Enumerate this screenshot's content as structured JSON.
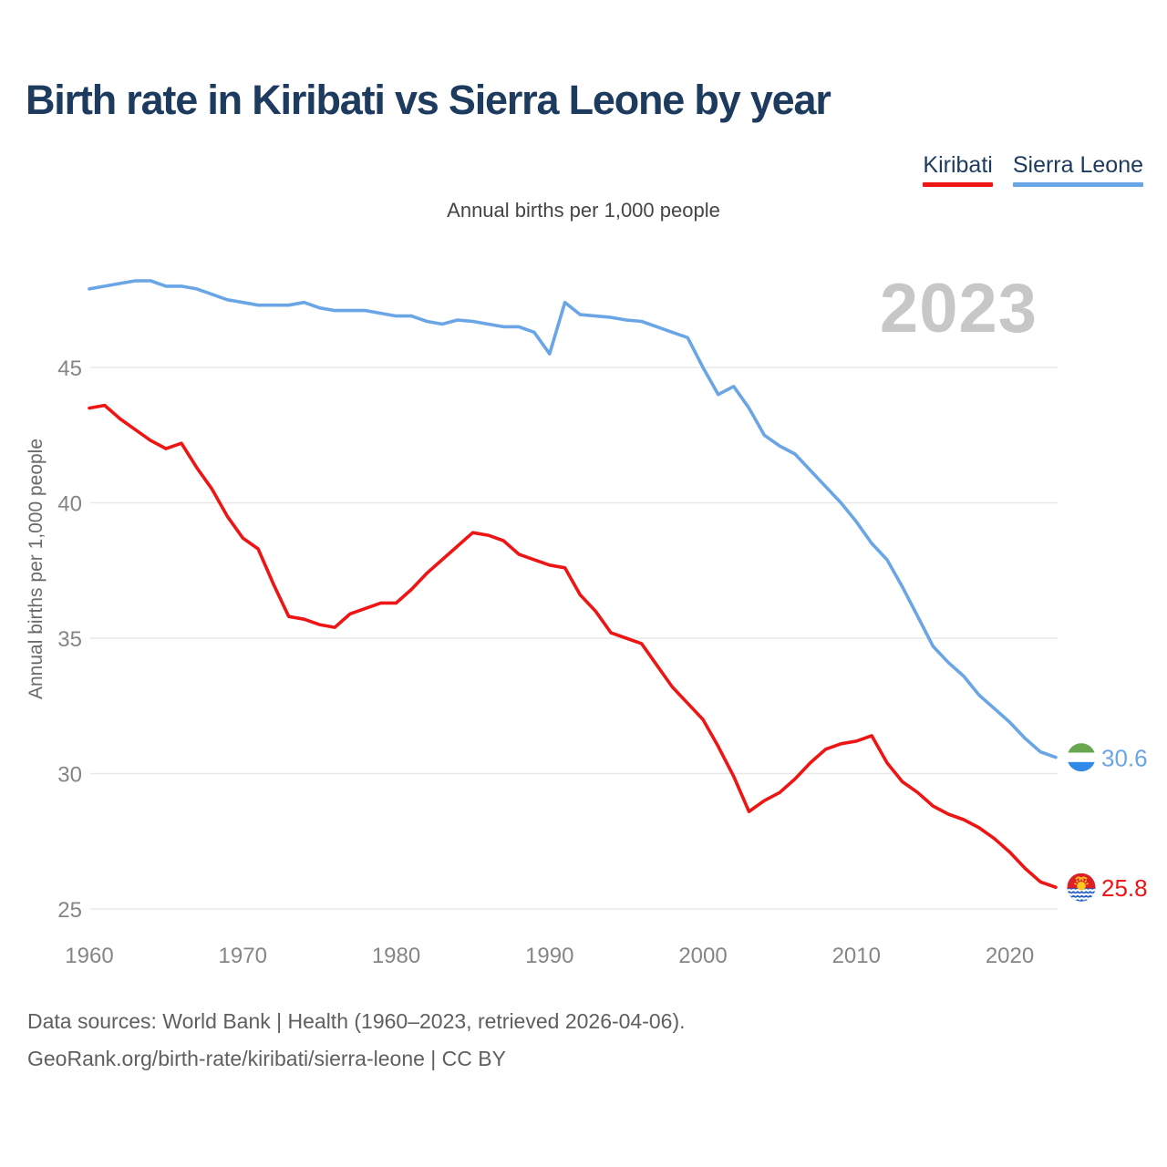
{
  "title": "Birth rate in Kiribati vs Sierra Leone by year",
  "subtitle": "Annual births per 1,000 people",
  "watermark_year": "2023",
  "legend": {
    "items": [
      {
        "label": "Kiribati",
        "color": "#ee1515"
      },
      {
        "label": "Sierra Leone",
        "color": "#6aa5e6"
      }
    ]
  },
  "footer": {
    "line1": "Data sources: World Bank | Health (1960–2023, retrieved 2026-04-06).",
    "line2": "GeoRank.org/birth-rate/kiribati/sierra-leone | CC BY"
  },
  "colors": {
    "background": "#ffffff",
    "title": "#1d3a5f",
    "subtitle": "#454545",
    "axis_text": "#858585",
    "axis_title": "#6a6a6a",
    "gridline": "#e8e8e8",
    "watermark": "#c7c7c7",
    "footer": "#5f5f5f"
  },
  "flags": {
    "sierra_leone": {
      "green": "#68a74e",
      "white": "#ffffff",
      "blue": "#2f89e6"
    },
    "kiribati": {
      "red": "#dd2025",
      "gold": "#ffc726",
      "sea_blue": "#2160c4",
      "wave_white": "#ffffff"
    }
  },
  "chart_data": {
    "type": "line",
    "title": "Birth rate in Kiribati vs Sierra Leone by year",
    "xlabel": "",
    "ylabel": "Annual births per 1,000 people",
    "x_start": 1960,
    "x_end": 2023,
    "x_ticks": [
      1960,
      1970,
      1980,
      1990,
      2000,
      2010,
      2020
    ],
    "y_ticks": [
      25,
      30,
      35,
      40,
      45
    ],
    "ylim": [
      24.5,
      48.8
    ],
    "grid": true,
    "legend_position": "top-right",
    "series": [
      {
        "name": "Kiribati",
        "color": "#ee1515",
        "end_label": "25.8",
        "flag": "kiribati",
        "values": [
          43.5,
          43.6,
          43.1,
          42.7,
          42.3,
          42.0,
          42.2,
          41.3,
          40.5,
          39.5,
          38.7,
          38.3,
          37.0,
          35.8,
          35.7,
          35.5,
          35.4,
          35.9,
          36.1,
          36.3,
          36.3,
          36.8,
          37.4,
          37.9,
          38.4,
          38.9,
          38.8,
          38.6,
          38.1,
          37.9,
          37.7,
          37.6,
          36.6,
          36.0,
          35.2,
          35.0,
          34.8,
          34.0,
          33.2,
          32.6,
          32.0,
          31.0,
          29.9,
          28.6,
          29.0,
          29.3,
          29.8,
          30.4,
          30.9,
          31.1,
          31.2,
          31.4,
          30.4,
          29.7,
          29.3,
          28.8,
          28.5,
          28.3,
          28.0,
          27.6,
          27.1,
          26.5,
          26.0,
          25.8
        ]
      },
      {
        "name": "Sierra Leone",
        "color": "#6aa5e6",
        "end_label": "30.6",
        "flag": "sierra-leone",
        "values": [
          47.9,
          48.0,
          48.1,
          48.2,
          48.2,
          48.0,
          48.0,
          47.9,
          47.7,
          47.5,
          47.4,
          47.3,
          47.3,
          47.3,
          47.4,
          47.2,
          47.1,
          47.1,
          47.1,
          47.0,
          46.9,
          46.9,
          46.7,
          46.6,
          46.75,
          46.7,
          46.6,
          46.5,
          46.5,
          46.3,
          45.5,
          47.4,
          46.95,
          46.9,
          46.85,
          46.75,
          46.7,
          46.5,
          46.3,
          46.1,
          45.0,
          44.0,
          44.3,
          43.5,
          42.5,
          42.1,
          41.8,
          41.2,
          40.6,
          40.0,
          39.3,
          38.5,
          37.9,
          36.9,
          35.8,
          34.7,
          34.1,
          33.6,
          32.9,
          32.4,
          31.9,
          31.3,
          30.8,
          30.6
        ]
      }
    ]
  }
}
